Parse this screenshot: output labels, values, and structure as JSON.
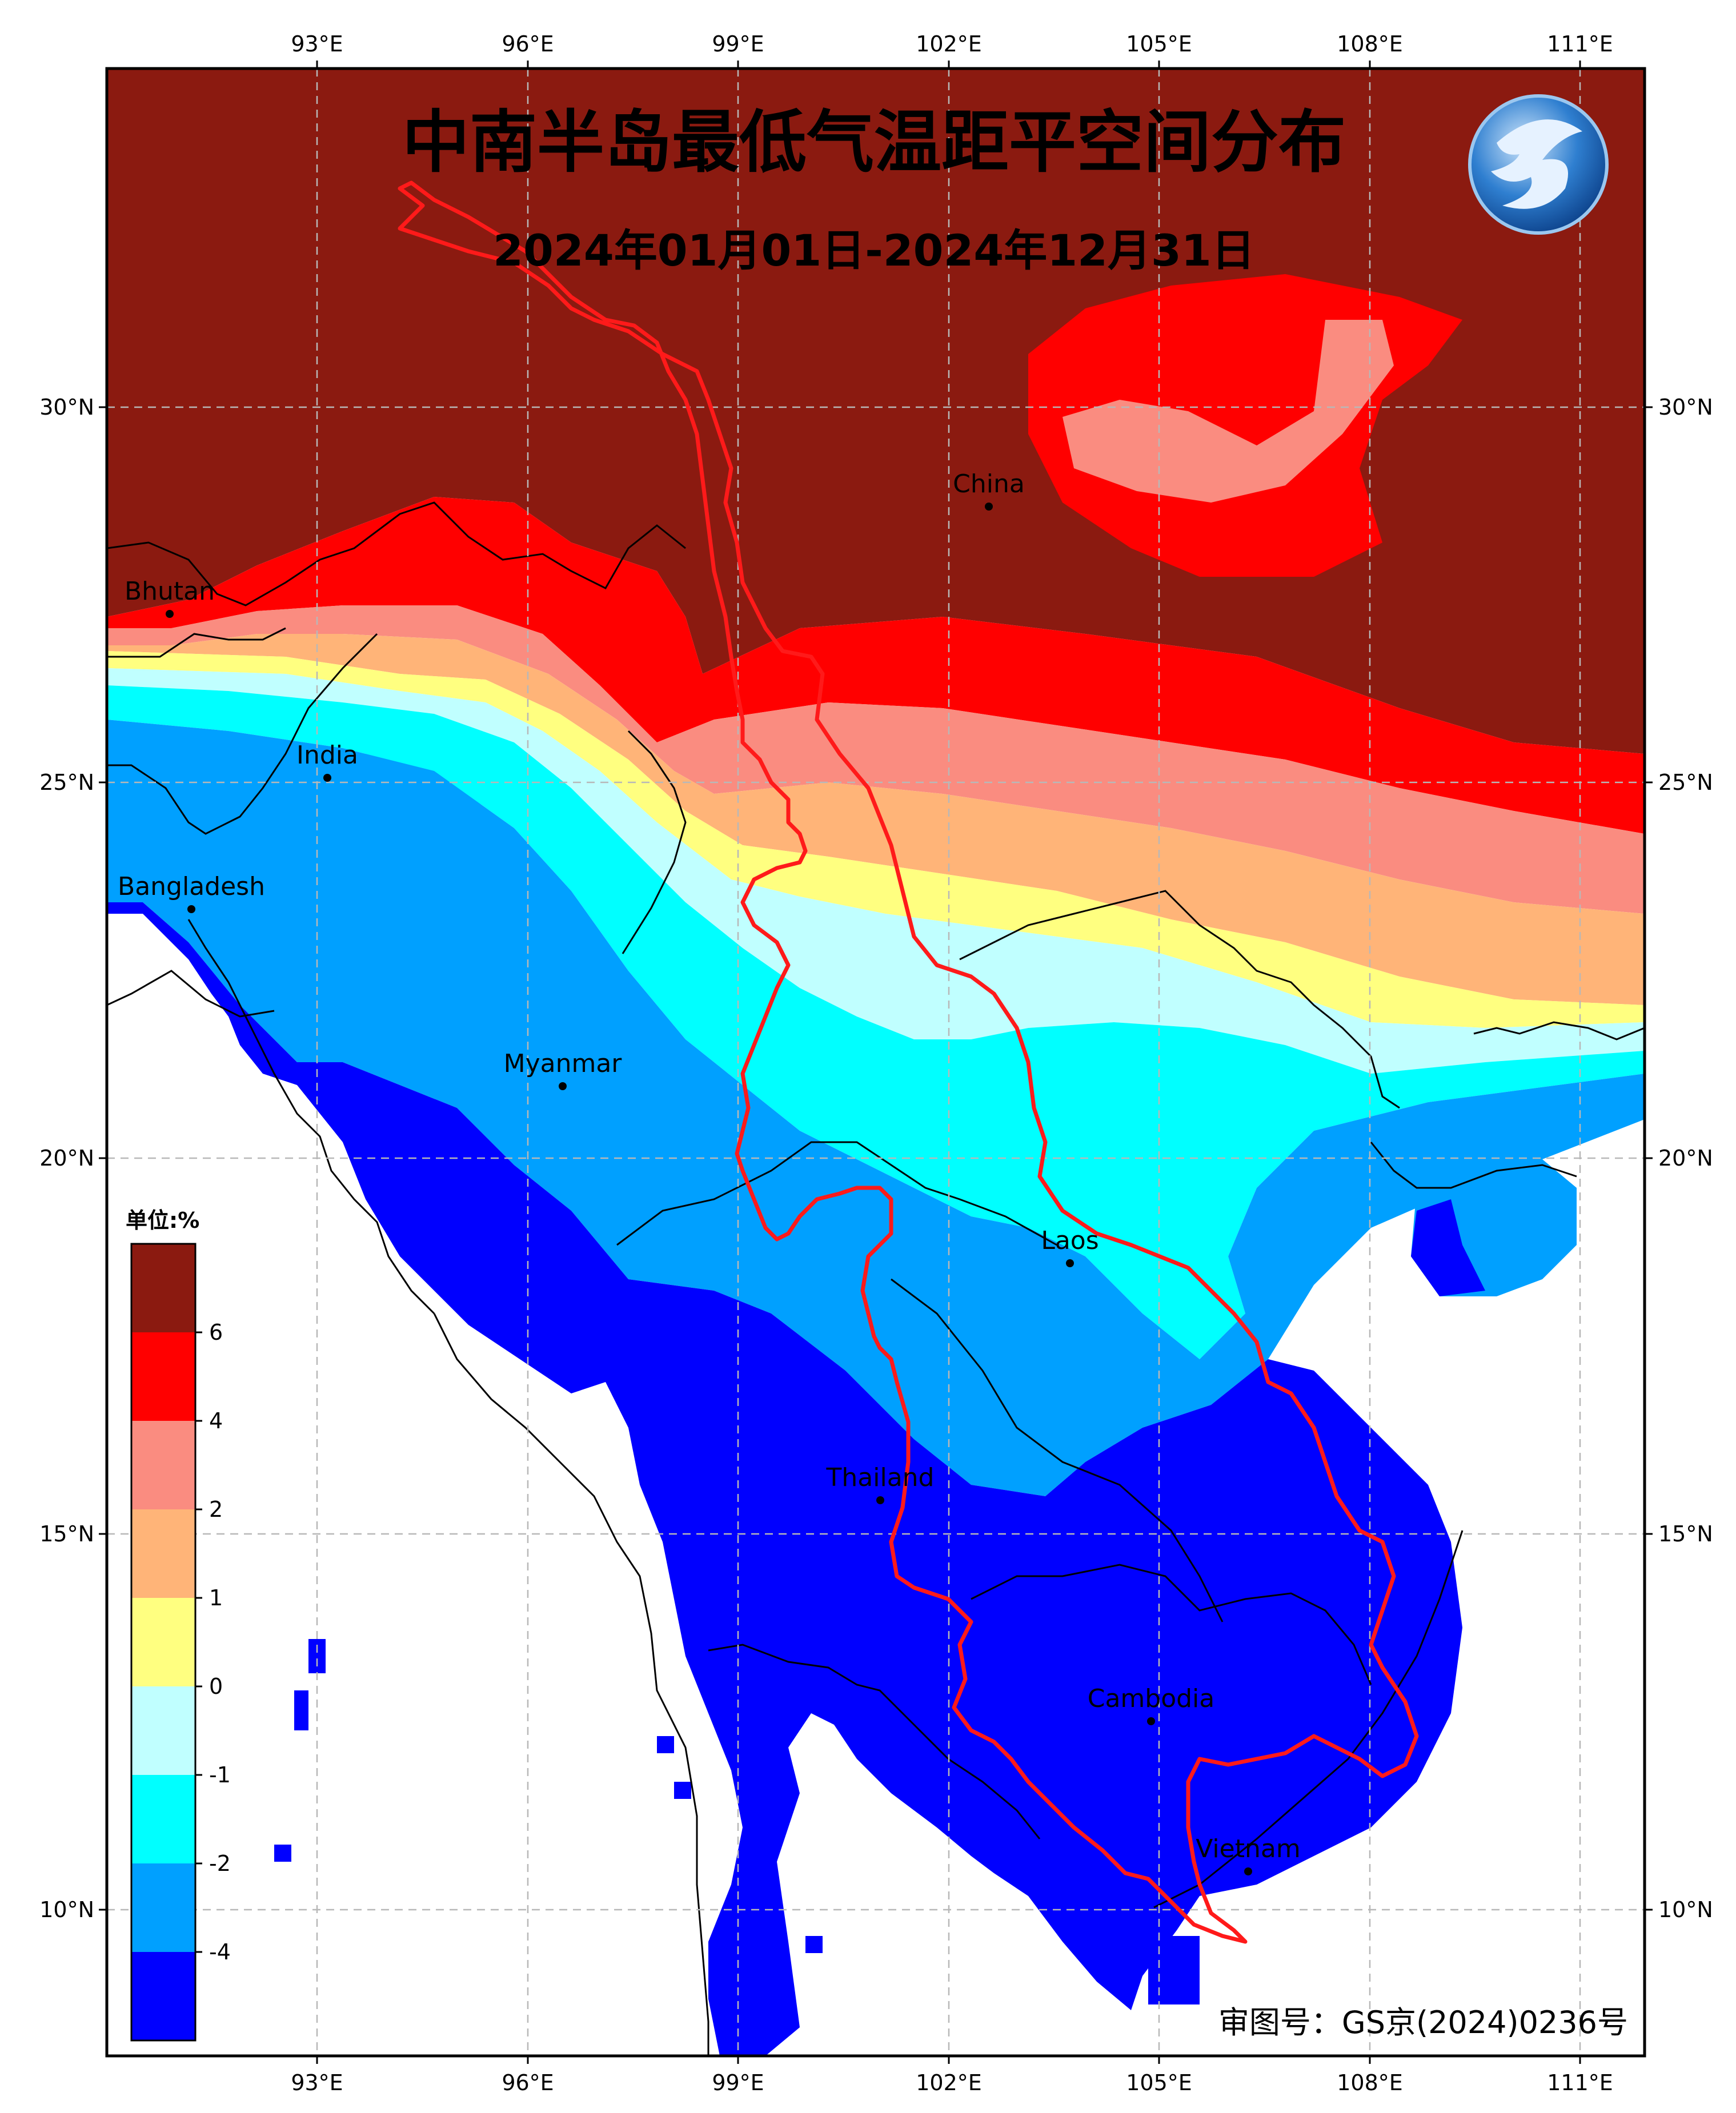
{
  "map": {
    "title": "中南半岛最低气温距平空间分布",
    "subtitle": "2024年01月01日-2024年12月31日",
    "review_number": "审图号：GS京(2024)0236号",
    "logo_icon": "cma-dragon-logo-icon",
    "lon_labels": [
      "93°E",
      "96°E",
      "99°E",
      "102°E",
      "105°E",
      "108°E",
      "111°E"
    ],
    "lat_labels": [
      "30°N",
      "25°N",
      "20°N",
      "15°N",
      "10°N"
    ],
    "places": [
      {
        "name": "China"
      },
      {
        "name": "Bhutan"
      },
      {
        "name": "India"
      },
      {
        "name": "Bangladesh"
      },
      {
        "name": "Myanmar"
      },
      {
        "name": "Laos"
      },
      {
        "name": "Thailand"
      },
      {
        "name": "Cambodia"
      },
      {
        "name": "Vietnam"
      }
    ]
  },
  "legend": {
    "unit": "单位:%",
    "labels": [
      "6",
      "4",
      "2",
      "1",
      "0",
      "-1",
      "-2",
      "-4"
    ],
    "colors": [
      "#8b1a10",
      "#ff0000",
      "#fa8c80",
      "#ffb478",
      "#ffff80",
      "#c0ffff",
      "#00ffff",
      "#00a0ff",
      "#0000ff"
    ]
  }
}
